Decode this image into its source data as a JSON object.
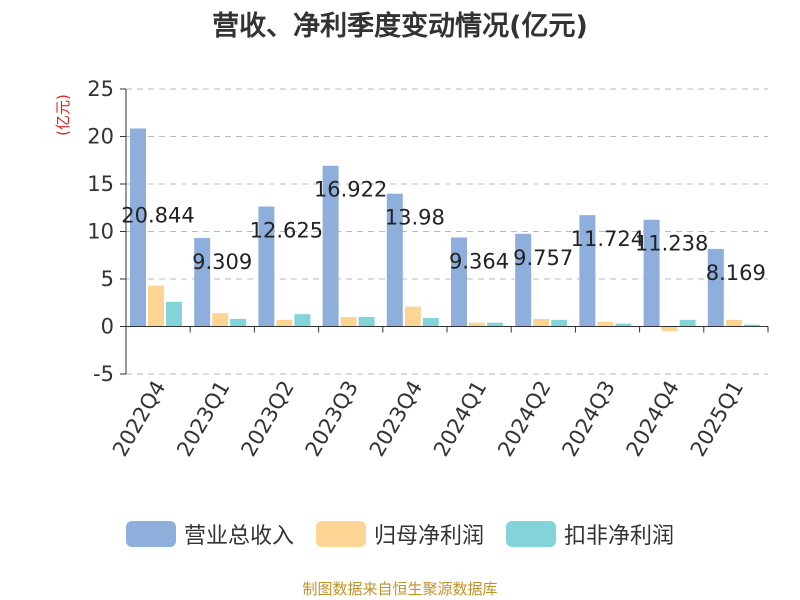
{
  "title": "营收、净利季度变动情况(亿元)",
  "source": "制图数据来自恒生聚源数据库",
  "colors": {
    "revenue": "#8eaedb",
    "net_profit": "#fcd594",
    "deducted_profit": "#82d4d8",
    "axis": "#333333",
    "grid": "#bbbbbb",
    "unit": "#e02020"
  },
  "chart_data": {
    "type": "bar",
    "title": "营收、净利季度变动情况(亿元)",
    "ylabel": "(亿元)",
    "ylim": [
      -5,
      25
    ],
    "yticks": [
      -5,
      0,
      5,
      10,
      15,
      20,
      25
    ],
    "grid": true,
    "legend_position": "bottom",
    "categories": [
      "2022Q4",
      "2023Q1",
      "2023Q2",
      "2023Q3",
      "2023Q4",
      "2024Q1",
      "2024Q2",
      "2024Q3",
      "2024Q4",
      "2025Q1"
    ],
    "series": [
      {
        "name": "营业总收入",
        "color_key": "revenue",
        "values": [
          20.844,
          9.309,
          12.625,
          16.922,
          13.98,
          9.364,
          9.757,
          11.724,
          11.238,
          8.169
        ],
        "labels": [
          "20.844",
          "9.309",
          "12.625",
          "16.922",
          "13.98",
          "9.364",
          "9.757",
          "11.724",
          "11.238",
          "8.169"
        ]
      },
      {
        "name": "归母净利润",
        "color_key": "net_profit",
        "values": [
          4.3,
          1.4,
          0.7,
          1.0,
          2.1,
          0.4,
          0.8,
          0.5,
          -0.5,
          0.7
        ]
      },
      {
        "name": "扣非净利润",
        "color_key": "deducted_profit",
        "values": [
          2.6,
          0.8,
          1.3,
          1.0,
          0.9,
          0.4,
          0.7,
          0.3,
          0.7,
          0.2
        ]
      }
    ]
  }
}
